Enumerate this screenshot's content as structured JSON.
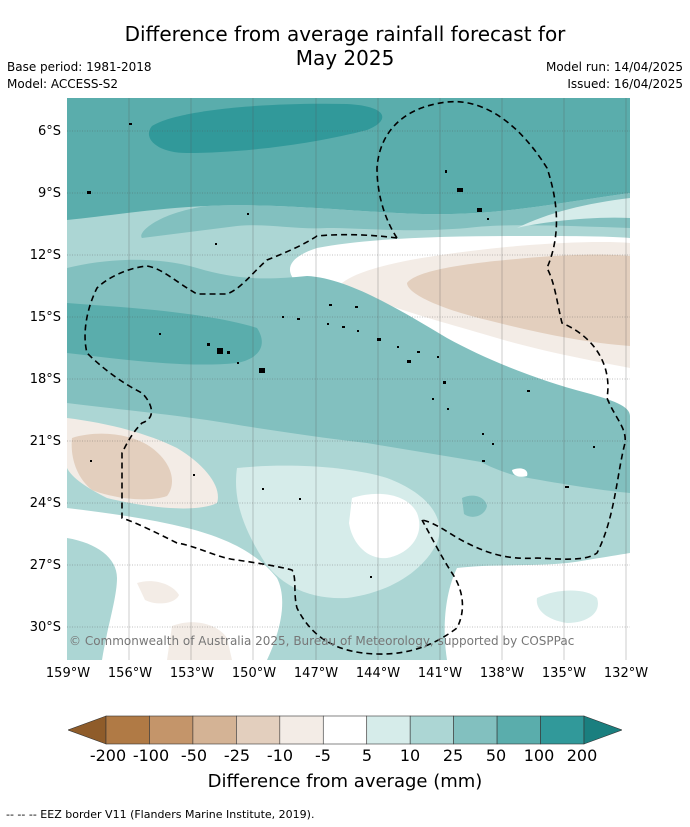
{
  "title_line1": "Difference from average rainfall forecast for",
  "title_line2": "May 2025",
  "meta_left": [
    "Base period: 1981-2018",
    "Model: ACCESS-S2"
  ],
  "meta_right": [
    "Model run: 14/04/2025",
    "Issued: 16/04/2025"
  ],
  "latitude_labels": [
    "6°S",
    "9°S",
    "12°S",
    "15°S",
    "18°S",
    "21°S",
    "24°S",
    "27°S",
    "30°S"
  ],
  "longitude_labels": [
    "159°W",
    "156°W",
    "153°W",
    "150°W",
    "147°W",
    "144°W",
    "141°W",
    "138°W",
    "135°W",
    "132°W"
  ],
  "copyright": "© Commonwealth of Australia 2025, Bureau of Meteorology, supported by COSPPac",
  "colorbar": {
    "labels": [
      "-200",
      "-100",
      "-50",
      "-25",
      "-10",
      "-5",
      "5",
      "10",
      "25",
      "50",
      "100",
      "200"
    ],
    "colors": [
      "#8f5c2a",
      "#b07a45",
      "#c4956a",
      "#d4b395",
      "#e3cfbe",
      "#f3ece6",
      "#ffffff",
      "#d6ecea",
      "#acd6d4",
      "#82c0bf",
      "#5aadac",
      "#31999a",
      "#1a7f7f"
    ],
    "title": "Difference from average (mm)"
  },
  "footnote": "-- -- -- EEZ border V11 (Flanders Marine Institute, 2019)."
}
